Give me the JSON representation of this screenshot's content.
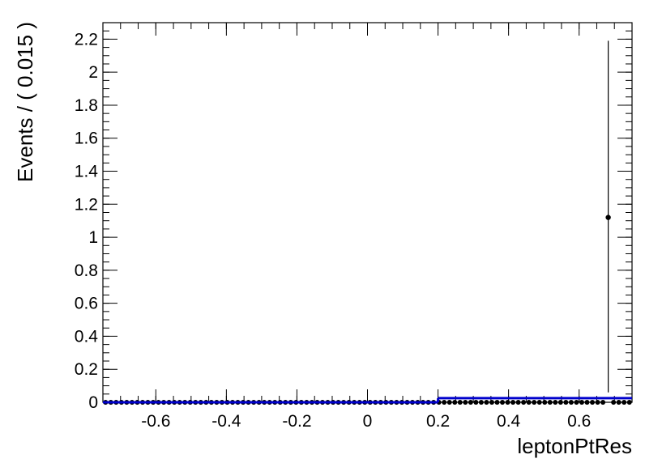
{
  "chart_data": {
    "type": "scatter",
    "title": "",
    "xlabel": "leptonPtRes",
    "ylabel": "Events / ( 0.015 )",
    "xlim": [
      -0.75,
      0.75
    ],
    "ylim": [
      0,
      2.3
    ],
    "grid": false,
    "x_ticks": [
      -0.6,
      -0.4,
      -0.2,
      0,
      0.2,
      0.4,
      0.6
    ],
    "x_tick_labels": [
      "-0.6",
      "-0.4",
      "-0.2",
      "0",
      "0.2",
      "0.4",
      "0.6"
    ],
    "y_ticks": [
      0,
      0.2,
      0.4,
      0.6,
      0.8,
      1,
      1.2,
      1.4,
      1.6,
      1.8,
      2,
      2.2
    ],
    "y_tick_labels": [
      "0",
      "0.2",
      "0.4",
      "0.6",
      "0.8",
      "1",
      "1.2",
      "1.4",
      "1.6",
      "1.8",
      "2",
      "2.2"
    ],
    "bin_width": 0.015,
    "series": [
      {
        "kind": "points",
        "marker_color": "#000000",
        "x_start": -0.7425,
        "x_step": 0.015,
        "count": 100,
        "default_y": 0,
        "nonzero_points": [
          {
            "x": 0.6825,
            "y": 1.12,
            "err_low": 1.06,
            "err_high": 1.07
          }
        ]
      },
      {
        "kind": "step-line",
        "color": "#0000cc",
        "segments": [
          {
            "x0": -0.75,
            "x1": 0.2,
            "y": 0.0
          },
          {
            "x0": 0.2,
            "x1": 0.75,
            "y": 0.025
          }
        ]
      }
    ]
  }
}
